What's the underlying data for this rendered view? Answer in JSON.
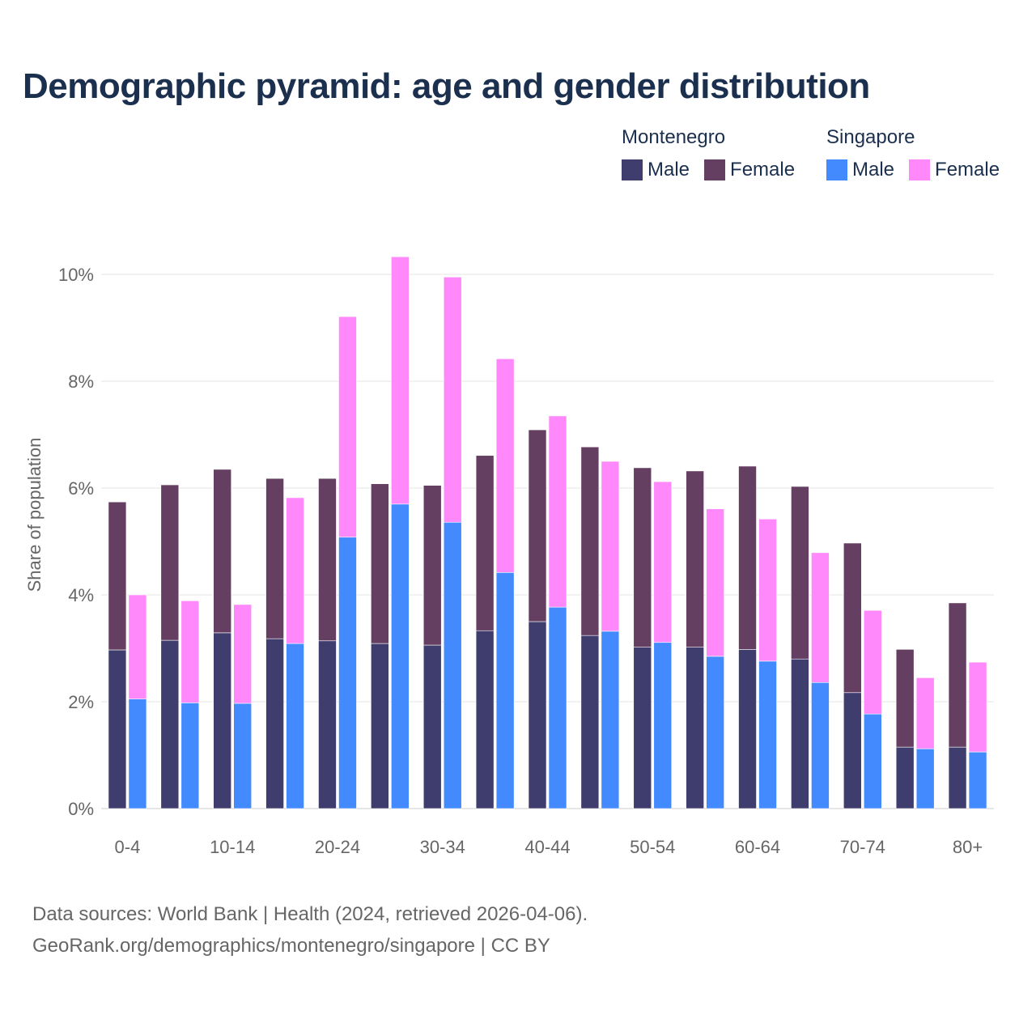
{
  "chart_data": {
    "type": "bar",
    "title": "Demographic pyramid: age and gender distribution",
    "ylabel": "Share of population",
    "xlabel": "",
    "ylim": [
      0,
      10.5
    ],
    "yticks": [
      "0%",
      "2%",
      "4%",
      "6%",
      "8%",
      "10%"
    ],
    "ytick_values": [
      0,
      2,
      4,
      6,
      8,
      10
    ],
    "grid": true,
    "legend_position": "top-right",
    "stacked": true,
    "categories": [
      "0-4",
      "5-9",
      "10-14",
      "15-19",
      "20-24",
      "25-29",
      "30-34",
      "35-39",
      "40-44",
      "45-49",
      "50-54",
      "55-59",
      "60-64",
      "65-69",
      "70-74",
      "75-79",
      "80+"
    ],
    "xtick_labels": [
      "0-4",
      "10-14",
      "20-24",
      "30-34",
      "40-44",
      "50-54",
      "60-64",
      "70-74",
      "80+"
    ],
    "groups": [
      {
        "name": "Montenegro",
        "series": [
          {
            "name": "Male",
            "color": "#3f3d6e",
            "values": [
              2.97,
              3.15,
              3.29,
              3.18,
              3.14,
              3.09,
              3.06,
              3.33,
              3.5,
              3.24,
              3.02,
              3.02,
              2.98,
              2.8,
              2.17,
              1.15,
              1.15
            ]
          },
          {
            "name": "Female",
            "color": "#653f62",
            "values": [
              2.77,
              2.91,
              3.06,
              3.0,
              3.04,
              2.99,
              2.99,
              3.28,
              3.59,
              3.53,
              3.36,
              3.3,
              3.43,
              3.23,
              2.8,
              1.83,
              2.7
            ]
          }
        ]
      },
      {
        "name": "Singapore",
        "series": [
          {
            "name": "Male",
            "color": "#428afe",
            "values": [
              2.05,
              1.98,
              1.97,
              3.09,
              5.08,
              5.7,
              5.36,
              4.42,
              3.77,
              3.32,
              3.11,
              2.85,
              2.76,
              2.36,
              1.77,
              1.12,
              1.06
            ]
          },
          {
            "name": "Female",
            "color": "#ff88fa",
            "values": [
              1.95,
              1.91,
              1.85,
              2.73,
              4.13,
              4.63,
              4.59,
              4.0,
              3.58,
              3.18,
              3.01,
              2.76,
              2.66,
              2.43,
              1.94,
              1.33,
              1.68
            ]
          }
        ]
      }
    ]
  },
  "footer": {
    "line1": "Data sources: World Bank | Health (2024, retrieved 2026-04-06).",
    "line2": "GeoRank.org/demographics/montenegro/singapore | CC BY"
  }
}
